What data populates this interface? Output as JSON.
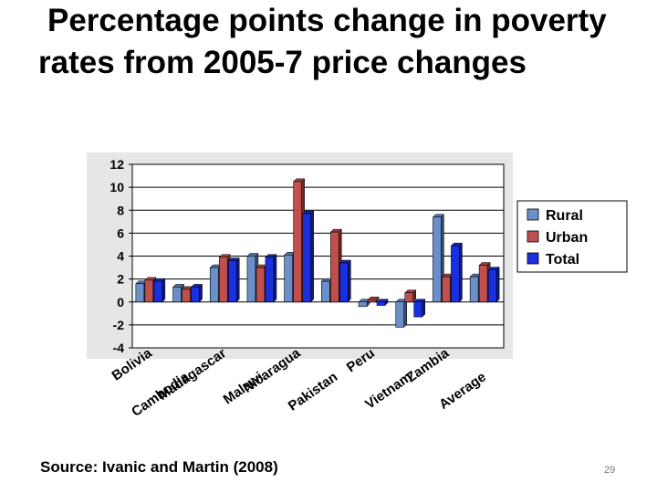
{
  "slide": {
    "title": "Percentage points change in poverty rates from 2005-7 price changes",
    "source": "Source: Ivanic and Martin (2008)",
    "page_number": "29"
  },
  "chart_data": {
    "type": "bar",
    "title": "",
    "xlabel": "",
    "ylabel": "",
    "ylim": [
      -4,
      12
    ],
    "yticks": [
      -4,
      -2,
      0,
      2,
      4,
      6,
      8,
      10,
      12
    ],
    "grid": true,
    "legend_position": "right",
    "categories": [
      "Bolivia",
      "Cambodia",
      "Madagascar",
      "Malawi",
      "Nicaragua",
      "Pakistan",
      "Peru",
      "Vietnam",
      "Zambia",
      "Average"
    ],
    "series": [
      {
        "name": "Rural",
        "color": "#6b8fc9",
        "values": [
          1.6,
          1.3,
          3.0,
          4.0,
          4.1,
          1.8,
          -0.4,
          -2.2,
          7.4,
          2.2
        ]
      },
      {
        "name": "Urban",
        "color": "#c0504d",
        "values": [
          1.9,
          1.1,
          3.9,
          3.0,
          10.5,
          6.1,
          0.2,
          0.8,
          2.2,
          3.2
        ]
      },
      {
        "name": "Total",
        "color": "#1a2fe0",
        "values": [
          1.8,
          1.3,
          3.6,
          3.9,
          7.7,
          3.4,
          -0.3,
          -1.3,
          4.9,
          2.8
        ]
      }
    ]
  }
}
